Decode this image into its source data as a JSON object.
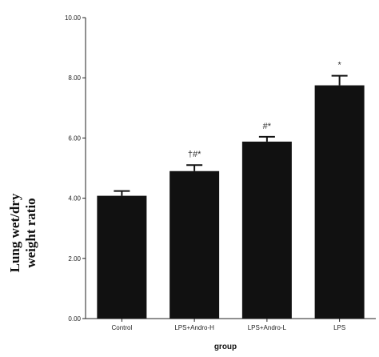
{
  "chart_data": {
    "type": "bar",
    "categories": [
      "Control",
      "LPS+Andro-H",
      "LPS+Andro-L",
      "LPS"
    ],
    "values": [
      4.08,
      4.9,
      5.88,
      7.75
    ],
    "error_upper": [
      4.24,
      5.1,
      6.04,
      8.07
    ],
    "annotations": [
      "",
      "†#*",
      "#*",
      "*"
    ],
    "xlabel": "group",
    "ylabel": [
      "Lung wet/dry",
      "weight ratio"
    ],
    "ylim": [
      0,
      10
    ],
    "yticks": [
      "0.00",
      "2.00",
      "4.00",
      "6.00",
      "8.00",
      "10.00"
    ],
    "bar_color": "#111111",
    "grid": false
  }
}
